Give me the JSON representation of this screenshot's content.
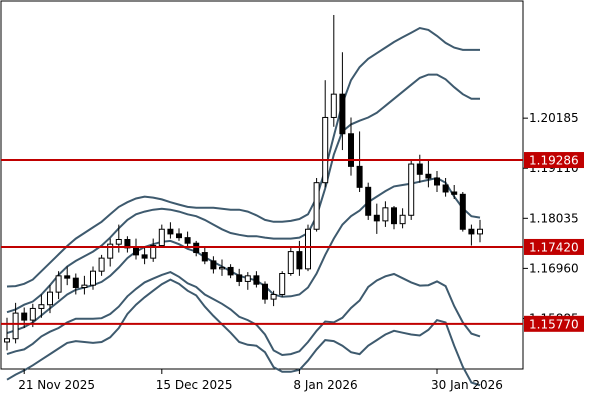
{
  "chart_data": {
    "type": "candlestick",
    "timeframe": "daily",
    "colors": {
      "background": "#ffffff",
      "frame": "#000000",
      "bollinger_bands": "#3e5a6e",
      "level_line": "#c00000",
      "level_label_bg": "#c00000",
      "bull_fill": "#ffffff",
      "bear_fill": "#000000",
      "candle_outline": "#000000"
    },
    "y_axis": {
      "side": "right",
      "range": [
        1.148,
        1.227
      ],
      "tick_labels": [
        "1.20185",
        "1.19110",
        "1.18035",
        "1.16960",
        "1.15885"
      ],
      "tick_values": [
        1.20185,
        1.1911,
        1.18035,
        1.1696,
        1.15885
      ]
    },
    "x_axis": {
      "tick_labels": [
        "21 Nov 2025",
        "15 Dec 2025",
        "8 Jan 2026",
        "30 Jan 2026"
      ],
      "tick_index": [
        2,
        18,
        34,
        50
      ]
    },
    "levels": [
      {
        "value": 1.19286,
        "label": "1.19286"
      },
      {
        "value": 1.1742,
        "label": "1.17420"
      },
      {
        "value": 1.1577,
        "label": "1.15770"
      }
    ],
    "candles": [
      [
        1.1538,
        1.159,
        1.152,
        1.1545
      ],
      [
        1.1545,
        1.1622,
        1.1535,
        1.16
      ],
      [
        1.16,
        1.1612,
        1.1568,
        1.1585
      ],
      [
        1.1585,
        1.162,
        1.157,
        1.161
      ],
      [
        1.161,
        1.164,
        1.159,
        1.1618
      ],
      [
        1.1618,
        1.166,
        1.16,
        1.1645
      ],
      [
        1.1645,
        1.169,
        1.163,
        1.168
      ],
      [
        1.168,
        1.17,
        1.166,
        1.1675
      ],
      [
        1.1675,
        1.1685,
        1.164,
        1.1655
      ],
      [
        1.1655,
        1.168,
        1.164,
        1.166
      ],
      [
        1.166,
        1.17,
        1.165,
        1.169
      ],
      [
        1.169,
        1.1725,
        1.168,
        1.1718
      ],
      [
        1.1718,
        1.176,
        1.17,
        1.1748
      ],
      [
        1.1748,
        1.179,
        1.173,
        1.1758
      ],
      [
        1.1758,
        1.1765,
        1.173,
        1.174
      ],
      [
        1.174,
        1.176,
        1.1715,
        1.1725
      ],
      [
        1.1725,
        1.174,
        1.1705,
        1.1718
      ],
      [
        1.1718,
        1.176,
        1.171,
        1.1745
      ],
      [
        1.1745,
        1.179,
        1.174,
        1.178
      ],
      [
        1.178,
        1.1795,
        1.176,
        1.177
      ],
      [
        1.177,
        1.1782,
        1.1755,
        1.1762
      ],
      [
        1.1762,
        1.1775,
        1.174,
        1.175
      ],
      [
        1.175,
        1.1755,
        1.1722,
        1.173
      ],
      [
        1.173,
        1.1742,
        1.1705,
        1.1712
      ],
      [
        1.1712,
        1.1722,
        1.1685,
        1.1695
      ],
      [
        1.1695,
        1.1715,
        1.168,
        1.1698
      ],
      [
        1.1698,
        1.1705,
        1.1675,
        1.1682
      ],
      [
        1.1682,
        1.1695,
        1.1658,
        1.1668
      ],
      [
        1.1668,
        1.1688,
        1.165,
        1.168
      ],
      [
        1.168,
        1.169,
        1.1655,
        1.1662
      ],
      [
        1.1662,
        1.1668,
        1.162,
        1.163
      ],
      [
        1.163,
        1.1648,
        1.1615,
        1.164
      ],
      [
        1.164,
        1.169,
        1.1635,
        1.1685
      ],
      [
        1.1685,
        1.174,
        1.168,
        1.1732
      ],
      [
        1.1732,
        1.1755,
        1.168,
        1.1695
      ],
      [
        1.1695,
        1.179,
        1.169,
        1.178
      ],
      [
        1.178,
        1.189,
        1.1775,
        1.188
      ],
      [
        1.188,
        1.21,
        1.187,
        1.202
      ],
      [
        1.202,
        1.224,
        1.2,
        1.207
      ],
      [
        1.207,
        1.216,
        1.195,
        1.1985
      ],
      [
        1.1985,
        1.202,
        1.1895,
        1.1915
      ],
      [
        1.1915,
        1.199,
        1.186,
        1.187
      ],
      [
        1.187,
        1.188,
        1.18,
        1.181
      ],
      [
        1.181,
        1.1835,
        1.177,
        1.1798
      ],
      [
        1.1798,
        1.184,
        1.1785,
        1.1826
      ],
      [
        1.1826,
        1.183,
        1.178,
        1.1792
      ],
      [
        1.1792,
        1.1825,
        1.1782,
        1.181
      ],
      [
        1.181,
        1.193,
        1.18,
        1.192
      ],
      [
        1.192,
        1.194,
        1.188,
        1.1898
      ],
      [
        1.1898,
        1.193,
        1.187,
        1.189
      ],
      [
        1.189,
        1.1905,
        1.186,
        1.1875
      ],
      [
        1.1875,
        1.189,
        1.185,
        1.186
      ],
      [
        1.186,
        1.1875,
        1.1845,
        1.1855
      ],
      [
        1.1855,
        1.186,
        1.1775,
        1.178
      ],
      [
        1.178,
        1.179,
        1.1745,
        1.177
      ],
      [
        1.177,
        1.18,
        1.1752,
        1.178
      ]
    ],
    "bollinger": {
      "middle": [
        1.1557,
        1.1563,
        1.157,
        1.158,
        1.1595,
        1.161,
        1.1625,
        1.164,
        1.165,
        1.1655,
        1.166,
        1.1667,
        1.168,
        1.1698,
        1.1718,
        1.1732,
        1.1742,
        1.1748,
        1.1753,
        1.1755,
        1.1748,
        1.1738,
        1.1732,
        1.172,
        1.171,
        1.17,
        1.169,
        1.168,
        1.1675,
        1.167,
        1.1658,
        1.164,
        1.1635,
        1.1636,
        1.164,
        1.1655,
        1.1685,
        1.1725,
        1.176,
        1.179,
        1.1808,
        1.182,
        1.1838,
        1.185,
        1.1862,
        1.1872,
        1.1875,
        1.1878,
        1.1882,
        1.1886,
        1.189,
        1.188,
        1.185,
        1.1825,
        1.1808,
        1.1805
      ],
      "upper1": [
        1.1602,
        1.1608,
        1.1618,
        1.1625,
        1.164,
        1.166,
        1.1682,
        1.17,
        1.1712,
        1.1722,
        1.1732,
        1.1745,
        1.1762,
        1.1782,
        1.18,
        1.1812,
        1.1818,
        1.1822,
        1.1824,
        1.1822,
        1.1818,
        1.1812,
        1.1808,
        1.18,
        1.179,
        1.178,
        1.1772,
        1.1768,
        1.1765,
        1.1765,
        1.1762,
        1.176,
        1.176,
        1.176,
        1.1762,
        1.1772,
        1.1808,
        1.1868,
        1.194,
        1.199,
        1.2005,
        1.2013,
        1.202,
        1.203,
        1.2045,
        1.206,
        1.2075,
        1.209,
        1.2105,
        1.2112,
        1.2112,
        1.2102,
        1.2085,
        1.207,
        1.206,
        1.206
      ],
      "upper2": [
        1.1657,
        1.1658,
        1.1663,
        1.1672,
        1.169,
        1.1708,
        1.1726,
        1.1744,
        1.176,
        1.1772,
        1.1784,
        1.1796,
        1.1812,
        1.1828,
        1.1838,
        1.1846,
        1.185,
        1.1848,
        1.1844,
        1.1838,
        1.1833,
        1.1828,
        1.1826,
        1.1826,
        1.1826,
        1.1824,
        1.1822,
        1.1822,
        1.1818,
        1.181,
        1.18,
        1.1796,
        1.1796,
        1.1798,
        1.1802,
        1.1812,
        1.1848,
        1.1908,
        1.198,
        1.205,
        1.21,
        1.2128,
        1.2146,
        1.2158,
        1.217,
        1.2182,
        1.2192,
        1.2202,
        1.2212,
        1.2208,
        1.2195,
        1.218,
        1.217,
        1.2165,
        1.2165,
        1.2165
      ],
      "lower1": [
        1.1512,
        1.1518,
        1.1522,
        1.1534,
        1.155,
        1.156,
        1.1568,
        1.158,
        1.1588,
        1.1588,
        1.1588,
        1.1589,
        1.1598,
        1.1614,
        1.1636,
        1.1652,
        1.1666,
        1.1674,
        1.1682,
        1.1688,
        1.1678,
        1.1664,
        1.1656,
        1.164,
        1.163,
        1.162,
        1.1608,
        1.1592,
        1.1585,
        1.1575,
        1.1554,
        1.152,
        1.151,
        1.1512,
        1.1518,
        1.1538,
        1.1562,
        1.1582,
        1.158,
        1.159,
        1.1611,
        1.1627,
        1.1656,
        1.167,
        1.1679,
        1.1684,
        1.1675,
        1.1666,
        1.1659,
        1.166,
        1.1668,
        1.1658,
        1.1615,
        1.158,
        1.1556,
        1.155
      ],
      "lower2": [
        1.1457,
        1.1468,
        1.1477,
        1.1488,
        1.15,
        1.1512,
        1.1524,
        1.1536,
        1.154,
        1.1538,
        1.1536,
        1.1538,
        1.1548,
        1.1568,
        1.1598,
        1.1618,
        1.1634,
        1.1648,
        1.1662,
        1.1672,
        1.1663,
        1.1648,
        1.1638,
        1.1614,
        1.1594,
        1.1576,
        1.1558,
        1.1538,
        1.1532,
        1.153,
        1.1516,
        1.1484,
        1.1474,
        1.1474,
        1.1478,
        1.1498,
        1.1522,
        1.1542,
        1.154,
        1.153,
        1.1516,
        1.1512,
        1.153,
        1.1542,
        1.1554,
        1.1562,
        1.1558,
        1.1554,
        1.1552,
        1.1564,
        1.1585,
        1.158,
        1.153,
        1.1485,
        1.1451,
        1.1445
      ]
    }
  }
}
